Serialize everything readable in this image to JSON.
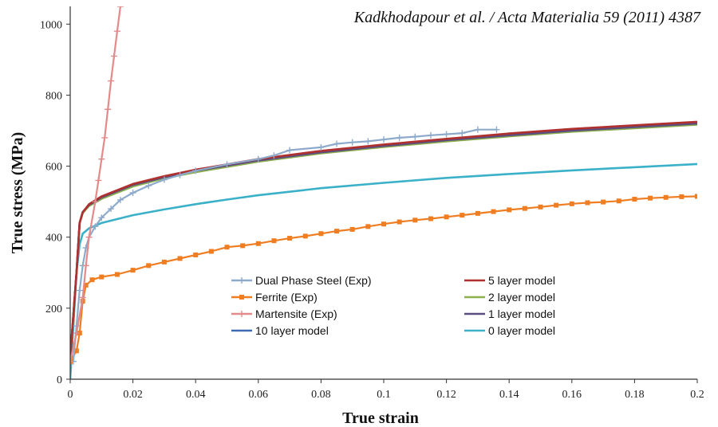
{
  "citation": "Kadkhodapour et al. / Acta Materialia 59 (2011) 4387",
  "chart_data": {
    "type": "line",
    "title": "",
    "xlabel": "True strain",
    "ylabel": "True stress (MPa)",
    "xlim": [
      0,
      0.2
    ],
    "ylim": [
      0,
      1050
    ],
    "xticks": [
      "0",
      "0.02",
      "0.04",
      "0.06",
      "0.08",
      "0.1",
      "0.12",
      "0.14",
      "0.16",
      "0.18",
      "0.2"
    ],
    "yticks": [
      "0",
      "200",
      "400",
      "600",
      "800",
      "1000"
    ],
    "grid": false,
    "legend_position": "lower-right",
    "series": [
      {
        "name": "Dual Phase Steel (Exp)",
        "color": "#8eaacb",
        "marker": "plus",
        "points": [
          [
            0.001,
            50
          ],
          [
            0.002,
            150
          ],
          [
            0.003,
            250
          ],
          [
            0.004,
            320
          ],
          [
            0.005,
            370
          ],
          [
            0.006,
            400
          ],
          [
            0.008,
            430
          ],
          [
            0.01,
            455
          ],
          [
            0.013,
            480
          ],
          [
            0.016,
            505
          ],
          [
            0.02,
            525
          ],
          [
            0.025,
            545
          ],
          [
            0.03,
            562
          ],
          [
            0.035,
            575
          ],
          [
            0.04,
            587
          ],
          [
            0.05,
            605
          ],
          [
            0.06,
            620
          ],
          [
            0.065,
            630
          ],
          [
            0.07,
            645
          ],
          [
            0.08,
            653
          ],
          [
            0.085,
            663
          ],
          [
            0.09,
            667
          ],
          [
            0.095,
            670
          ],
          [
            0.1,
            675
          ],
          [
            0.105,
            680
          ],
          [
            0.11,
            683
          ],
          [
            0.115,
            687
          ],
          [
            0.12,
            690
          ],
          [
            0.125,
            693
          ],
          [
            0.13,
            703
          ],
          [
            0.136,
            703
          ]
        ]
      },
      {
        "name": "Ferrite (Exp)",
        "color": "#ef7d22",
        "marker": "square",
        "points": [
          [
            0.0,
            50
          ],
          [
            0.002,
            80
          ],
          [
            0.003,
            130
          ],
          [
            0.004,
            220
          ],
          [
            0.005,
            265
          ],
          [
            0.007,
            280
          ],
          [
            0.01,
            288
          ],
          [
            0.015,
            295
          ],
          [
            0.02,
            307
          ],
          [
            0.025,
            320
          ],
          [
            0.03,
            330
          ],
          [
            0.035,
            340
          ],
          [
            0.04,
            350
          ],
          [
            0.045,
            360
          ],
          [
            0.05,
            372
          ],
          [
            0.055,
            376
          ],
          [
            0.06,
            382
          ],
          [
            0.065,
            390
          ],
          [
            0.07,
            397
          ],
          [
            0.075,
            403
          ],
          [
            0.08,
            410
          ],
          [
            0.085,
            417
          ],
          [
            0.09,
            422
          ],
          [
            0.095,
            430
          ],
          [
            0.1,
            437
          ],
          [
            0.105,
            443
          ],
          [
            0.11,
            448
          ],
          [
            0.115,
            452
          ],
          [
            0.12,
            457
          ],
          [
            0.125,
            462
          ],
          [
            0.13,
            467
          ],
          [
            0.135,
            472
          ],
          [
            0.14,
            477
          ],
          [
            0.145,
            481
          ],
          [
            0.15,
            485
          ],
          [
            0.155,
            490
          ],
          [
            0.16,
            494
          ],
          [
            0.165,
            497
          ],
          [
            0.17,
            499
          ],
          [
            0.175,
            502
          ],
          [
            0.18,
            507
          ],
          [
            0.185,
            510
          ],
          [
            0.19,
            512
          ],
          [
            0.195,
            514
          ],
          [
            0.2,
            515
          ]
        ]
      },
      {
        "name": "Martensite (Exp)",
        "color": "#e38b8b",
        "marker": "plus",
        "points": [
          [
            0.0,
            50
          ],
          [
            0.002,
            130
          ],
          [
            0.004,
            230
          ],
          [
            0.005,
            320
          ],
          [
            0.006,
            400
          ],
          [
            0.008,
            500
          ],
          [
            0.009,
            560
          ],
          [
            0.01,
            620
          ],
          [
            0.011,
            680
          ],
          [
            0.012,
            760
          ],
          [
            0.013,
            840
          ],
          [
            0.014,
            910
          ],
          [
            0.015,
            980
          ],
          [
            0.016,
            1050
          ]
        ]
      },
      {
        "name": "10 layer model",
        "color": "#3d6ab5",
        "marker": "none",
        "points": [
          [
            0.0,
            60
          ],
          [
            0.002,
            300
          ],
          [
            0.003,
            440
          ],
          [
            0.004,
            470
          ],
          [
            0.006,
            490
          ],
          [
            0.01,
            510
          ],
          [
            0.02,
            545
          ],
          [
            0.03,
            568
          ],
          [
            0.04,
            585
          ],
          [
            0.06,
            615
          ],
          [
            0.08,
            638
          ],
          [
            0.1,
            655
          ],
          [
            0.12,
            672
          ],
          [
            0.14,
            685
          ],
          [
            0.16,
            698
          ],
          [
            0.18,
            708
          ],
          [
            0.2,
            718
          ]
        ]
      },
      {
        "name": "5 layer model",
        "color": "#b0302e",
        "marker": "none",
        "points": [
          [
            0.0,
            60
          ],
          [
            0.002,
            300
          ],
          [
            0.003,
            440
          ],
          [
            0.004,
            470
          ],
          [
            0.006,
            493
          ],
          [
            0.01,
            515
          ],
          [
            0.02,
            550
          ],
          [
            0.03,
            572
          ],
          [
            0.04,
            590
          ],
          [
            0.06,
            620
          ],
          [
            0.08,
            643
          ],
          [
            0.1,
            661
          ],
          [
            0.12,
            677
          ],
          [
            0.14,
            692
          ],
          [
            0.16,
            705
          ],
          [
            0.18,
            715
          ],
          [
            0.2,
            725
          ]
        ]
      },
      {
        "name": "2 layer model",
        "color": "#8db04a",
        "marker": "none",
        "points": [
          [
            0.0,
            60
          ],
          [
            0.002,
            300
          ],
          [
            0.003,
            440
          ],
          [
            0.004,
            468
          ],
          [
            0.006,
            488
          ],
          [
            0.01,
            508
          ],
          [
            0.02,
            543
          ],
          [
            0.03,
            566
          ],
          [
            0.04,
            583
          ],
          [
            0.06,
            613
          ],
          [
            0.08,
            636
          ],
          [
            0.1,
            654
          ],
          [
            0.12,
            670
          ],
          [
            0.14,
            684
          ],
          [
            0.16,
            697
          ],
          [
            0.18,
            707
          ],
          [
            0.2,
            717
          ]
        ]
      },
      {
        "name": "1 layer model",
        "color": "#5a4e80",
        "marker": "none",
        "points": [
          [
            0.0,
            60
          ],
          [
            0.002,
            300
          ],
          [
            0.003,
            440
          ],
          [
            0.004,
            471
          ],
          [
            0.006,
            491
          ],
          [
            0.01,
            512
          ],
          [
            0.02,
            547
          ],
          [
            0.03,
            569
          ],
          [
            0.04,
            587
          ],
          [
            0.06,
            616
          ],
          [
            0.08,
            639
          ],
          [
            0.1,
            657
          ],
          [
            0.12,
            673
          ],
          [
            0.14,
            687
          ],
          [
            0.16,
            700
          ],
          [
            0.18,
            710
          ],
          [
            0.2,
            720
          ]
        ]
      },
      {
        "name": "0 layer model",
        "color": "#3bb0c9",
        "marker": "none",
        "points": [
          [
            0.0,
            0
          ],
          [
            0.001,
            150
          ],
          [
            0.002,
            300
          ],
          [
            0.003,
            380
          ],
          [
            0.004,
            410
          ],
          [
            0.006,
            425
          ],
          [
            0.01,
            440
          ],
          [
            0.02,
            462
          ],
          [
            0.03,
            478
          ],
          [
            0.04,
            493
          ],
          [
            0.05,
            506
          ],
          [
            0.06,
            518
          ],
          [
            0.08,
            538
          ],
          [
            0.1,
            553
          ],
          [
            0.12,
            567
          ],
          [
            0.14,
            578
          ],
          [
            0.16,
            588
          ],
          [
            0.18,
            597
          ],
          [
            0.2,
            606
          ]
        ]
      }
    ],
    "legend_columns": [
      [
        "Dual Phase Steel (Exp)",
        "Ferrite (Exp)",
        "Martensite (Exp)",
        "10 layer model"
      ],
      [
        "5 layer model",
        "2 layer model",
        "1 layer model",
        "0 layer model"
      ]
    ]
  }
}
